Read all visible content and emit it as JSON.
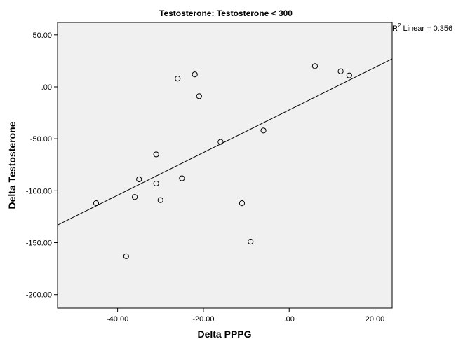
{
  "chart_data": {
    "type": "scatter",
    "title": "Testosterone: Testosterone < 300",
    "xlabel": "Delta PPPG",
    "ylabel": "Delta Testosterone",
    "xlim": [
      -54,
      24
    ],
    "ylim": [
      -213,
      62
    ],
    "x_ticks": [
      -40,
      -20,
      0,
      20
    ],
    "x_tick_labels": [
      "-40.00",
      "-20.00",
      ".00",
      "20.00"
    ],
    "y_ticks": [
      50,
      0,
      -50,
      -100,
      -150,
      -200
    ],
    "y_tick_labels": [
      "50.00",
      ".00",
      "-50.00",
      "-100.00",
      "-150.00",
      "-200.00"
    ],
    "grid": false,
    "plot_background": "#f0f0f0",
    "marker": "open-circle",
    "points": [
      {
        "x": -45,
        "y": -112
      },
      {
        "x": -38,
        "y": -163
      },
      {
        "x": -36,
        "y": -106
      },
      {
        "x": -35,
        "y": -89
      },
      {
        "x": -31,
        "y": -65
      },
      {
        "x": -31,
        "y": -93
      },
      {
        "x": -30,
        "y": -109
      },
      {
        "x": -26,
        "y": 8
      },
      {
        "x": -25,
        "y": -88
      },
      {
        "x": -22,
        "y": 12
      },
      {
        "x": -21,
        "y": -9
      },
      {
        "x": -16,
        "y": -53
      },
      {
        "x": -11,
        "y": -112
      },
      {
        "x": -9,
        "y": -149
      },
      {
        "x": -6,
        "y": -42
      },
      {
        "x": 6,
        "y": 20
      },
      {
        "x": 12,
        "y": 15
      },
      {
        "x": 14,
        "y": 11
      }
    ],
    "fit_line": {
      "x1": -54,
      "y1": -133,
      "x2": 24,
      "y2": 27
    },
    "annotation": {
      "prefix": "R",
      "superscript": "2",
      "text": " Linear = 0.356"
    }
  }
}
